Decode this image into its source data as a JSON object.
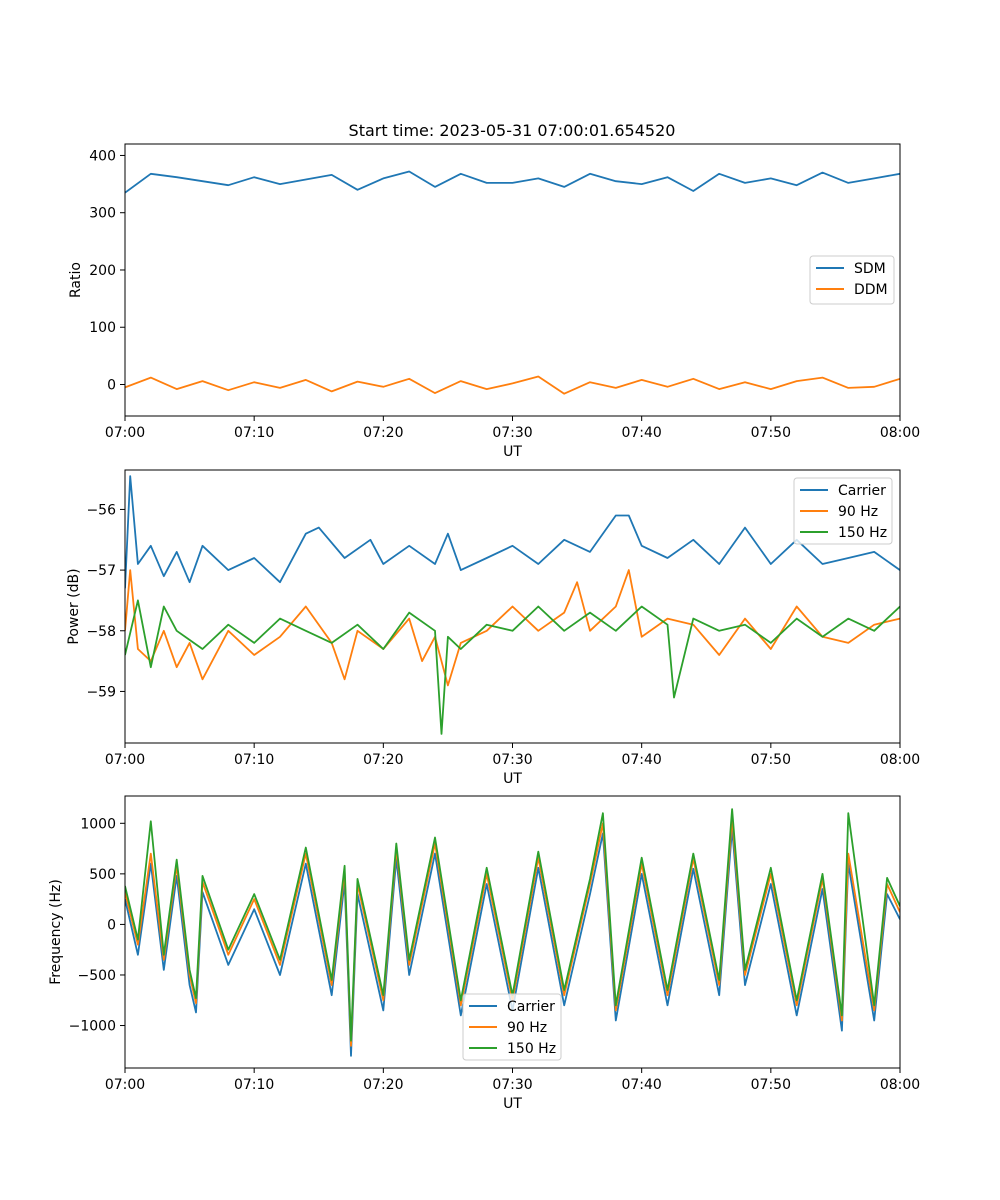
{
  "figure": {
    "title": "Start time: 2023-05-31 07:00:01.654520"
  },
  "chart_data": [
    {
      "type": "line",
      "title": "Start time: 2023-05-31 07:00:01.654520",
      "xlabel": "UT",
      "ylabel": "Ratio",
      "xlim": [
        0,
        60
      ],
      "ylim": [
        -55,
        420
      ],
      "xticks": [
        {
          "v": 0,
          "label": "07:00"
        },
        {
          "v": 10,
          "label": "07:10"
        },
        {
          "v": 20,
          "label": "07:20"
        },
        {
          "v": 30,
          "label": "07:30"
        },
        {
          "v": 40,
          "label": "07:40"
        },
        {
          "v": 50,
          "label": "07:50"
        },
        {
          "v": 60,
          "label": "08:00"
        }
      ],
      "yticks": [
        {
          "v": 0,
          "label": "0"
        },
        {
          "v": 100,
          "label": "100"
        },
        {
          "v": 200,
          "label": "200"
        },
        {
          "v": 300,
          "label": "300"
        },
        {
          "v": 400,
          "label": "400"
        }
      ],
      "grid": false,
      "legend": "center-right",
      "series": [
        {
          "name": "SDM",
          "color": "#1f77b4",
          "x": [
            0,
            2,
            4,
            6,
            8,
            10,
            12,
            14,
            16,
            18,
            20,
            22,
            24,
            26,
            28,
            30,
            32,
            34,
            36,
            38,
            40,
            42,
            44,
            46,
            48,
            50,
            52,
            54,
            56,
            58,
            60
          ],
          "y": [
            335,
            368,
            362,
            355,
            348,
            362,
            350,
            358,
            366,
            340,
            360,
            372,
            345,
            368,
            352,
            352,
            360,
            345,
            368,
            355,
            350,
            362,
            338,
            368,
            352,
            360,
            348,
            370,
            352,
            360,
            368
          ]
        },
        {
          "name": "DDM",
          "color": "#ff7f0e",
          "x": [
            0,
            2,
            4,
            6,
            8,
            10,
            12,
            14,
            16,
            18,
            20,
            22,
            24,
            26,
            28,
            30,
            32,
            34,
            36,
            38,
            40,
            42,
            44,
            46,
            48,
            50,
            52,
            54,
            56,
            58,
            60
          ],
          "y": [
            -5,
            12,
            -8,
            6,
            -10,
            4,
            -6,
            8,
            -12,
            5,
            -4,
            10,
            -15,
            6,
            -8,
            2,
            14,
            -16,
            4,
            -6,
            8,
            -4,
            10,
            -8,
            4,
            -8,
            6,
            12,
            -6,
            -4,
            10
          ]
        }
      ]
    },
    {
      "type": "line",
      "title": "",
      "xlabel": "UT",
      "ylabel": "Power (dB)",
      "xlim": [
        0,
        60
      ],
      "ylim": [
        -59.85,
        -55.35
      ],
      "xticks": [
        {
          "v": 0,
          "label": "07:00"
        },
        {
          "v": 10,
          "label": "07:10"
        },
        {
          "v": 20,
          "label": "07:20"
        },
        {
          "v": 30,
          "label": "07:30"
        },
        {
          "v": 40,
          "label": "07:40"
        },
        {
          "v": 50,
          "label": "07:50"
        },
        {
          "v": 60,
          "label": "08:00"
        }
      ],
      "yticks": [
        {
          "v": -56,
          "label": "−56"
        },
        {
          "v": -57,
          "label": "−57"
        },
        {
          "v": -58,
          "label": "−58"
        },
        {
          "v": -59,
          "label": "−59"
        }
      ],
      "grid": false,
      "legend": "top-right",
      "series": [
        {
          "name": "Carrier",
          "color": "#1f77b4",
          "x": [
            0,
            0.4,
            1,
            2,
            3,
            4,
            5,
            6,
            8,
            10,
            12,
            14,
            15,
            17,
            19,
            20,
            22,
            24,
            25,
            26,
            28,
            30,
            32,
            34,
            36,
            38,
            39,
            40,
            42,
            44,
            46,
            48,
            50,
            52,
            54,
            56,
            58,
            60
          ],
          "y": [
            -57.3,
            -55.45,
            -56.9,
            -56.6,
            -57.1,
            -56.7,
            -57.2,
            -56.6,
            -57.0,
            -56.8,
            -57.2,
            -56.4,
            -56.3,
            -56.8,
            -56.5,
            -56.9,
            -56.6,
            -56.9,
            -56.4,
            -57.0,
            -56.8,
            -56.6,
            -56.9,
            -56.5,
            -56.7,
            -56.1,
            -56.1,
            -56.6,
            -56.8,
            -56.5,
            -56.9,
            -56.3,
            -56.9,
            -56.5,
            -56.9,
            -56.8,
            -56.7,
            -57.0
          ]
        },
        {
          "name": "90 Hz",
          "color": "#ff7f0e",
          "x": [
            0,
            0.4,
            1,
            2,
            3,
            4,
            5,
            6,
            8,
            10,
            12,
            14,
            16,
            17,
            18,
            20,
            22,
            23,
            24,
            25,
            26,
            28,
            30,
            32,
            34,
            35,
            36,
            38,
            39,
            40,
            42,
            44,
            46,
            48,
            50,
            52,
            54,
            56,
            58,
            60
          ],
          "y": [
            -58.0,
            -57.0,
            -58.3,
            -58.5,
            -58.0,
            -58.6,
            -58.2,
            -58.8,
            -58.0,
            -58.4,
            -58.1,
            -57.6,
            -58.2,
            -58.8,
            -58.0,
            -58.3,
            -57.8,
            -58.5,
            -58.1,
            -58.9,
            -58.2,
            -58.0,
            -57.6,
            -58.0,
            -57.7,
            -57.2,
            -58.0,
            -57.6,
            -57.0,
            -58.1,
            -57.8,
            -57.9,
            -58.4,
            -57.8,
            -58.3,
            -57.6,
            -58.1,
            -58.2,
            -57.9,
            -57.8
          ]
        },
        {
          "name": "150 Hz",
          "color": "#2ca02c",
          "x": [
            0,
            1,
            2,
            3,
            4,
            6,
            8,
            10,
            12,
            14,
            16,
            18,
            20,
            22,
            24,
            24.5,
            25,
            26,
            28,
            30,
            32,
            34,
            36,
            38,
            40,
            42,
            42.5,
            44,
            46,
            48,
            50,
            52,
            54,
            56,
            58,
            60
          ],
          "y": [
            -58.4,
            -57.5,
            -58.6,
            -57.6,
            -58.0,
            -58.3,
            -57.9,
            -58.2,
            -57.8,
            -58.0,
            -58.2,
            -57.9,
            -58.3,
            -57.7,
            -58.0,
            -59.7,
            -58.1,
            -58.3,
            -57.9,
            -58.0,
            -57.6,
            -58.0,
            -57.7,
            -58.0,
            -57.6,
            -57.9,
            -59.1,
            -57.8,
            -58.0,
            -57.9,
            -58.2,
            -57.8,
            -58.1,
            -57.8,
            -58.0,
            -57.6
          ]
        }
      ]
    },
    {
      "type": "line",
      "title": "",
      "xlabel": "UT",
      "ylabel": "Frequency (Hz)",
      "xlim": [
        0,
        60
      ],
      "ylim": [
        -1420,
        1270
      ],
      "xticks": [
        {
          "v": 0,
          "label": "07:00"
        },
        {
          "v": 10,
          "label": "07:10"
        },
        {
          "v": 20,
          "label": "07:20"
        },
        {
          "v": 30,
          "label": "07:30"
        },
        {
          "v": 40,
          "label": "07:40"
        },
        {
          "v": 50,
          "label": "07:50"
        },
        {
          "v": 60,
          "label": "08:00"
        }
      ],
      "yticks": [
        {
          "v": 1000,
          "label": "1000"
        },
        {
          "v": 500,
          "label": "500"
        },
        {
          "v": 0,
          "label": "0"
        },
        {
          "v": -500,
          "label": "−500"
        },
        {
          "v": -1000,
          "label": "−1000"
        }
      ],
      "grid": false,
      "legend": "lower-center",
      "series": [
        {
          "name": "Carrier",
          "color": "#1f77b4",
          "x": [
            0,
            1,
            2,
            3,
            4,
            5,
            5.5,
            6,
            8,
            10,
            12,
            14,
            16,
            17,
            17.5,
            18,
            20,
            21,
            22,
            24,
            26,
            28,
            30,
            32,
            34,
            36,
            37,
            38,
            40,
            42,
            44,
            46,
            47,
            48,
            50,
            52,
            54,
            55.5,
            56,
            58,
            59,
            60
          ],
          "y": [
            250,
            -300,
            600,
            -450,
            480,
            -600,
            -870,
            320,
            -400,
            150,
            -500,
            600,
            -700,
            420,
            -1300,
            300,
            -850,
            650,
            -500,
            700,
            -900,
            400,
            -850,
            560,
            -800,
            300,
            900,
            -950,
            500,
            -800,
            550,
            -700,
            950,
            -600,
            400,
            -900,
            350,
            -1050,
            600,
            -950,
            300,
            50
          ]
        },
        {
          "name": "90 Hz",
          "color": "#ff7f0e",
          "x": [
            0,
            1,
            2,
            3,
            4,
            5,
            5.5,
            6,
            8,
            10,
            12,
            14,
            16,
            17,
            17.5,
            18,
            20,
            21,
            22,
            24,
            26,
            28,
            30,
            32,
            34,
            36,
            37,
            38,
            40,
            42,
            44,
            46,
            47,
            48,
            50,
            52,
            54,
            55.5,
            56,
            58,
            59,
            60
          ],
          "y": [
            320,
            -200,
            700,
            -350,
            580,
            -500,
            -780,
            420,
            -300,
            250,
            -400,
            700,
            -600,
            520,
            -1200,
            400,
            -750,
            750,
            -400,
            800,
            -800,
            500,
            -750,
            660,
            -700,
            400,
            1000,
            -850,
            600,
            -700,
            650,
            -600,
            1050,
            -500,
            500,
            -800,
            450,
            -950,
            700,
            -850,
            400,
            120
          ]
        },
        {
          "name": "150 Hz",
          "color": "#2ca02c",
          "x": [
            0,
            1,
            2,
            3,
            4,
            5,
            5.5,
            6,
            8,
            10,
            12,
            14,
            16,
            17,
            17.5,
            18,
            20,
            21,
            22,
            24,
            26,
            28,
            30,
            32,
            34,
            36,
            37,
            38,
            40,
            42,
            44,
            46,
            47,
            48,
            50,
            52,
            54,
            55.5,
            56,
            58,
            59,
            60
          ],
          "y": [
            380,
            -150,
            1020,
            -300,
            640,
            -450,
            -730,
            480,
            -250,
            300,
            -350,
            760,
            -550,
            580,
            -1150,
            450,
            -700,
            800,
            -350,
            860,
            -750,
            560,
            -700,
            720,
            -650,
            450,
            1100,
            -800,
            660,
            -650,
            700,
            -550,
            1140,
            -450,
            560,
            -750,
            500,
            -900,
            1100,
            -800,
            460,
            180
          ]
        }
      ]
    }
  ]
}
